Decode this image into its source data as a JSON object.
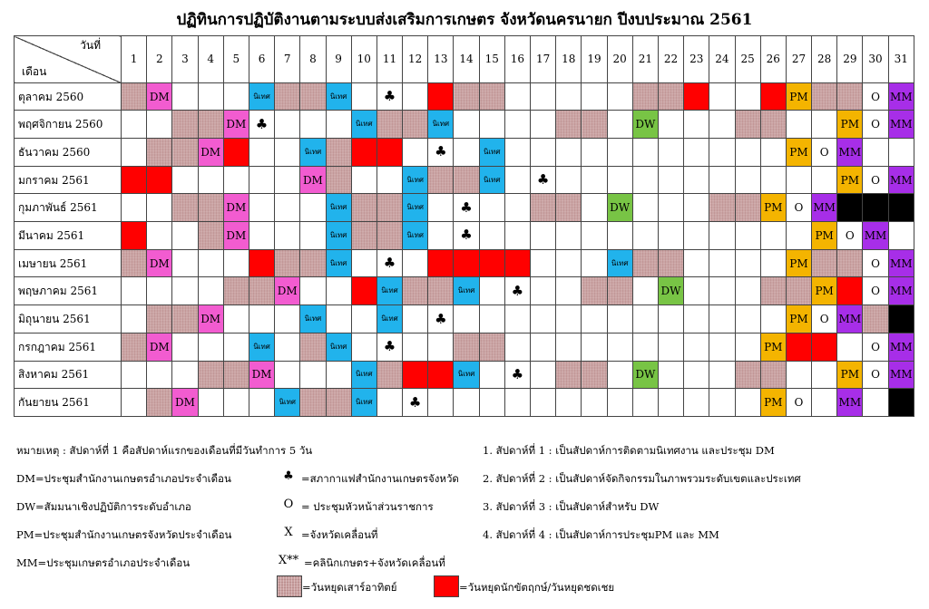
{
  "title": "ปฏิทินการปฏิบัติงานตามระบบส่งเสริมการเกษตร จังหวัดนครนายก ปีงบประมาณ 2561",
  "corner": {
    "day_label": "วันที่",
    "month_label": "เดือน"
  },
  "days": [
    "1",
    "2",
    "3",
    "4",
    "5",
    "6",
    "7",
    "8",
    "9",
    "10",
    "11",
    "12",
    "13",
    "14",
    "15",
    "16",
    "17",
    "18",
    "19",
    "20",
    "21",
    "22",
    "23",
    "24",
    "25",
    "26",
    "27",
    "28",
    "29",
    "30",
    "31"
  ],
  "months": [
    {
      "name": "ตุลาคม 2560",
      "cells": [
        "H",
        "DM",
        "",
        "",
        "",
        "N",
        "H",
        "H",
        "N",
        "",
        "C",
        "",
        "R",
        "H",
        "H",
        "",
        "",
        "",
        "",
        "",
        "H",
        "H",
        "R",
        "",
        "",
        "R",
        "PM",
        "H",
        "H",
        "O",
        "MM"
      ]
    },
    {
      "name": "พฤศจิกายน 2560",
      "cells": [
        "",
        "",
        "H",
        "H",
        "DM",
        "C",
        "",
        "",
        "",
        "N",
        "H",
        "H",
        "N",
        "",
        "",
        "",
        "",
        "H",
        "H",
        "",
        "DW",
        "",
        "",
        "",
        "H",
        "H",
        "",
        "",
        "PM",
        "O",
        "MM"
      ]
    },
    {
      "name": "ธันวาคม 2560",
      "cells": [
        "",
        "H",
        "H",
        "DM",
        "R",
        "",
        "",
        "N",
        "H",
        "R",
        "R",
        "",
        "C",
        "",
        "N",
        "",
        "",
        "",
        "",
        "",
        "",
        "",
        "",
        "",
        "",
        "",
        "PM",
        "O",
        "MM",
        "",
        ""
      ]
    },
    {
      "name": "มกราคม 2561",
      "cells": [
        "R",
        "R",
        "",
        "",
        "",
        "",
        "",
        "DM",
        "H",
        "",
        "",
        "N",
        "H",
        "H",
        "N",
        "",
        "C",
        "",
        "",
        "",
        "",
        "",
        "",
        "",
        "",
        "",
        "",
        "",
        "PM",
        "O",
        "MM"
      ]
    },
    {
      "name": "กุมภาพันธ์ 2561",
      "cells": [
        "",
        "",
        "H",
        "H",
        "DM",
        "",
        "",
        "",
        "N",
        "H",
        "H",
        "N",
        "",
        "C",
        "",
        "",
        "H",
        "H",
        "",
        "DW",
        "",
        "",
        "",
        "H",
        "H",
        "PM",
        "O",
        "MM",
        "B",
        "B",
        "B"
      ]
    },
    {
      "name": "มีนาคม 2561",
      "cells": [
        "R",
        "",
        "",
        "H",
        "DM",
        "",
        "",
        "",
        "N",
        "H",
        "H",
        "N",
        "",
        "C",
        "",
        "",
        "",
        "",
        "",
        "",
        "",
        "",
        "",
        "",
        "",
        "",
        "",
        "PM",
        "O",
        "MM",
        ""
      ]
    },
    {
      "name": "เมษายน 2561",
      "cells": [
        "H",
        "DM",
        "",
        "",
        "",
        "R",
        "H",
        "H",
        "N",
        "",
        "C",
        "",
        "R",
        "R",
        "R",
        "R",
        "",
        "",
        "",
        "N",
        "H",
        "H",
        "",
        "",
        "",
        "",
        "PM",
        "H",
        "H",
        "O",
        "MM"
      ]
    },
    {
      "name": "พฤษภาคม 2561",
      "cells": [
        "",
        "",
        "",
        "",
        "H",
        "H",
        "DM",
        "",
        "",
        "R",
        "N",
        "H",
        "H",
        "N",
        "",
        "C",
        "",
        "",
        "H",
        "H",
        "",
        "DW",
        "",
        "",
        "",
        "H",
        "H",
        "PM",
        "R",
        "O",
        "MM"
      ]
    },
    {
      "name": "มิถุนายน 2561",
      "cells": [
        "",
        "H",
        "H",
        "DM",
        "",
        "",
        "",
        "N",
        "",
        "",
        "N",
        "",
        "C",
        "",
        "",
        "",
        "",
        "",
        "",
        "",
        "",
        "",
        "",
        "",
        "",
        "",
        "PM",
        "O",
        "MM",
        "H",
        "B"
      ]
    },
    {
      "name": "กรกฎาคม 2561",
      "cells": [
        "H",
        "DM",
        "",
        "",
        "",
        "N",
        "",
        "H",
        "N",
        "",
        "C",
        "",
        "",
        "H",
        "H",
        "",
        "",
        "",
        "",
        "",
        "",
        "",
        "",
        "",
        "",
        "PM",
        "R",
        "R",
        "",
        "O",
        "MM"
      ]
    },
    {
      "name": "สิงหาคม 2561",
      "cells": [
        "",
        "",
        "",
        "H",
        "H",
        "DM",
        "",
        "",
        "",
        "N",
        "H",
        "R",
        "R",
        "N",
        "",
        "C",
        "",
        "H",
        "H",
        "",
        "DW",
        "",
        "",
        "",
        "H",
        "H",
        "",
        "",
        "PM",
        "O",
        "MM"
      ]
    },
    {
      "name": "กันยายน 2561",
      "cells": [
        "",
        "H",
        "DM",
        "",
        "",
        "",
        "N",
        "H",
        "H",
        "N",
        "",
        "C",
        "",
        "",
        "",
        "",
        "",
        "",
        "",
        "",
        "",
        "",
        "",
        "",
        "",
        "PM",
        "O",
        "",
        "MM",
        "",
        "B"
      ]
    }
  ],
  "labels": {
    "DM": "DM",
    "PM": "PM",
    "MM": "MM",
    "DW": "DW",
    "O": "O",
    "N": "นิเทศ",
    "C": "♣"
  },
  "notes": {
    "note_main": "หมายเหตุ :  สัปดาห์ที่ 1 คือสัปดาห์แรกของเดือนที่มีวันทำการ 5 วัน",
    "dm": "DM=ประชุมสำนักงานเกษตรอำเภอประจำเดือน",
    "dw": "DW=สัมมนาเชิงปฏิบัติการระดับอำเภอ",
    "pm": "PM=ประชุมสำนักงานเกษตรจังหวัดประจำเดือน",
    "mm": "MM=ประชุมเกษตรอำเภอประจำเดือน",
    "club_sym": "♣",
    "club": "=สภากาแฟสำนักงานเกษตรจังหวัด",
    "o_sym": "O",
    "o": "= ประชุมหัวหน้าส่วนราชการ",
    "x_sym": "X",
    "x": "=จังหวัดเคลื่อนที่",
    "xx_sym": "X**",
    "xx": "=คลินิกเกษตร+จังหวัดเคลื่อนที่",
    "weekend": "=วันหยุดเสาร์อาทิตย์",
    "holiday": "=วันหยุดนักขัตฤกษ์/วันหยุดชดเชย",
    "w1": "1. สัปดาห์ที่ 1 : เป็นสัปดาห์การติดตามนิเทศงาน และประชุม DM",
    "w2": "2. สัปดาห์ที่ 2 : เป็นสัปดาห์จัดกิจกรรมในภาพรวมระดับเขตและประเทศ",
    "w3": "3. สัปดาห์ที่ 3 : เป็นสัปดาห์สำหรับ DW",
    "w4": "4. สัปดาห์ที่ 4 : เป็นสัปดาห์การประชุมPM และ MM"
  },
  "colors": {
    "weekend": "#c9a0a0",
    "holiday": "#ff0000",
    "dm": "#f25cd0",
    "nitet": "#21b3ec",
    "pm": "#f4b400",
    "mm": "#a72ee8",
    "dw": "#78c445",
    "closed": "#000000"
  }
}
